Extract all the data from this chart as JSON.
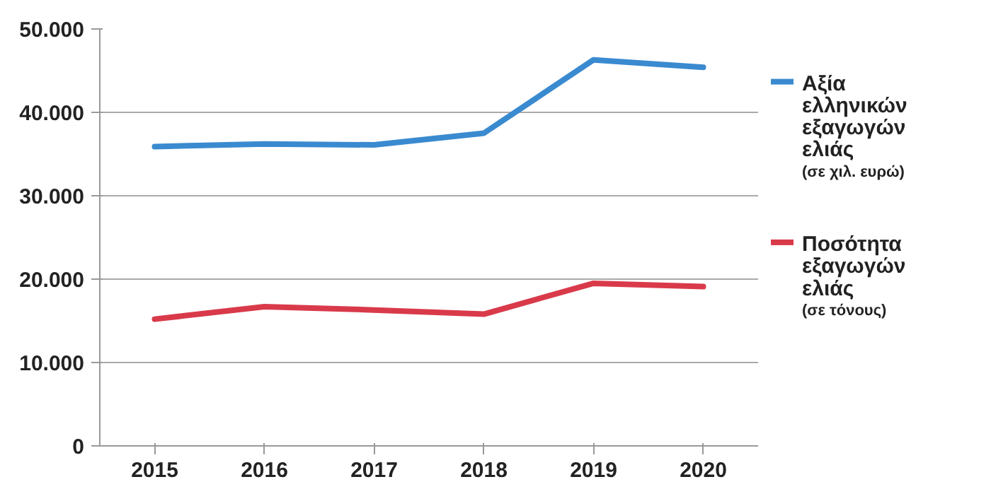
{
  "chart_data": {
    "type": "line",
    "categories": [
      "2015",
      "2016",
      "2017",
      "2018",
      "2019",
      "2020"
    ],
    "series": [
      {
        "name": "Αξία ελληνικών εξαγωγών ελιάς (σε χιλ. ευρώ)",
        "color": "#3a8ad0",
        "values": [
          35900,
          36200,
          36100,
          37500,
          46300,
          45400
        ]
      },
      {
        "name": "Ποσότητα εξαγωγών ελιάς (σε τόνους)",
        "color": "#d93a4a",
        "values": [
          15200,
          16700,
          16300,
          15800,
          19500,
          19100
        ]
      }
    ],
    "ylim": [
      0,
      50000
    ],
    "yticks": [
      {
        "value": 0,
        "label": "0"
      },
      {
        "value": 10000,
        "label": "10.000"
      },
      {
        "value": 20000,
        "label": "20.000"
      },
      {
        "value": 30000,
        "label": "30.000"
      },
      {
        "value": 40000,
        "label": "40.000"
      },
      {
        "value": 50000,
        "label": "50.000"
      }
    ],
    "grid": "y",
    "legend": "right",
    "marker": "none",
    "line_style": "solid"
  }
}
